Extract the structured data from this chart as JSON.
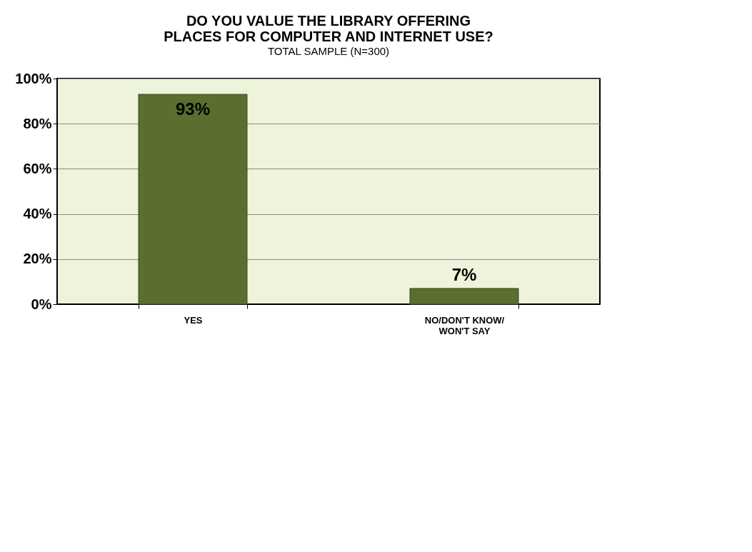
{
  "chart_data": {
    "type": "bar",
    "title": "DO YOU VALUE THE LIBRARY OFFERING PLACES FOR COMPUTER AND INTERNET USE?",
    "subtitle": "TOTAL SAMPLE (N=300)",
    "categories": [
      "YES",
      "NO/DON'T KNOW/ WON'T SAY"
    ],
    "values": [
      93,
      7
    ],
    "value_labels": [
      "93%",
      "7%"
    ],
    "color": "#5a6e2f",
    "ylim": [
      0,
      100
    ],
    "yticks": [
      {
        "value": 0,
        "label": "0%"
      },
      {
        "value": 20,
        "label": "20%"
      },
      {
        "value": 40,
        "label": "40%"
      },
      {
        "value": 60,
        "label": "60%"
      },
      {
        "value": 80,
        "label": "80%"
      },
      {
        "value": 100,
        "label": "100%"
      }
    ],
    "grid": "y"
  }
}
